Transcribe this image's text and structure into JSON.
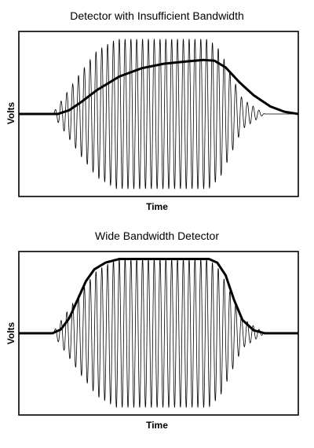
{
  "chart_data": [
    {
      "type": "line",
      "title": "Detector with Insufficient Bandwidth",
      "xlabel": "Time",
      "ylabel": "Volts",
      "grid": false,
      "xlim": [
        0,
        100
      ],
      "ylim": [
        -1.1,
        1.1
      ],
      "series": [
        {
          "kind": "rf-burst",
          "color": "#000000",
          "cycles": 48,
          "envelope": [
            [
              0,
              0
            ],
            [
              12,
              0
            ],
            [
              22,
              0.55
            ],
            [
              28,
              0.85
            ],
            [
              35,
              1
            ],
            [
              68,
              1
            ],
            [
              72,
              0.85
            ],
            [
              80,
              0.2
            ],
            [
              88,
              0
            ],
            [
              100,
              0
            ]
          ]
        },
        {
          "kind": "detector-output",
          "color": "#000000",
          "points": [
            [
              0,
              0
            ],
            [
              14,
              0
            ],
            [
              18,
              0.05
            ],
            [
              22,
              0.15
            ],
            [
              28,
              0.32
            ],
            [
              36,
              0.5
            ],
            [
              44,
              0.61
            ],
            [
              52,
              0.67
            ],
            [
              60,
              0.7
            ],
            [
              66,
              0.72
            ],
            [
              70,
              0.71
            ],
            [
              74,
              0.62
            ],
            [
              79,
              0.42
            ],
            [
              84,
              0.25
            ],
            [
              90,
              0.1
            ],
            [
              95,
              0.03
            ],
            [
              100,
              0
            ]
          ]
        }
      ]
    },
    {
      "type": "line",
      "title": "Wide Bandwidth Detector",
      "xlabel": "Time",
      "ylabel": "Volts",
      "grid": false,
      "xlim": [
        0,
        100
      ],
      "ylim": [
        -1.1,
        1.1
      ],
      "series": [
        {
          "kind": "rf-burst",
          "color": "#000000",
          "cycles": 48,
          "envelope": [
            [
              0,
              0
            ],
            [
              12,
              0
            ],
            [
              22,
              0.55
            ],
            [
              28,
              0.85
            ],
            [
              35,
              1
            ],
            [
              68,
              1
            ],
            [
              72,
              0.85
            ],
            [
              80,
              0.2
            ],
            [
              88,
              0
            ],
            [
              100,
              0
            ]
          ]
        },
        {
          "kind": "detector-output",
          "color": "#000000",
          "points": [
            [
              0,
              0
            ],
            [
              12,
              0
            ],
            [
              15,
              0.05
            ],
            [
              18,
              0.2
            ],
            [
              21,
              0.45
            ],
            [
              24,
              0.7
            ],
            [
              27,
              0.86
            ],
            [
              31,
              0.95
            ],
            [
              36,
              1
            ],
            [
              64,
              1
            ],
            [
              68,
              1
            ],
            [
              71,
              0.95
            ],
            [
              74,
              0.78
            ],
            [
              77,
              0.45
            ],
            [
              80,
              0.18
            ],
            [
              84,
              0.04
            ],
            [
              88,
              0
            ],
            [
              100,
              0
            ]
          ]
        }
      ]
    }
  ]
}
